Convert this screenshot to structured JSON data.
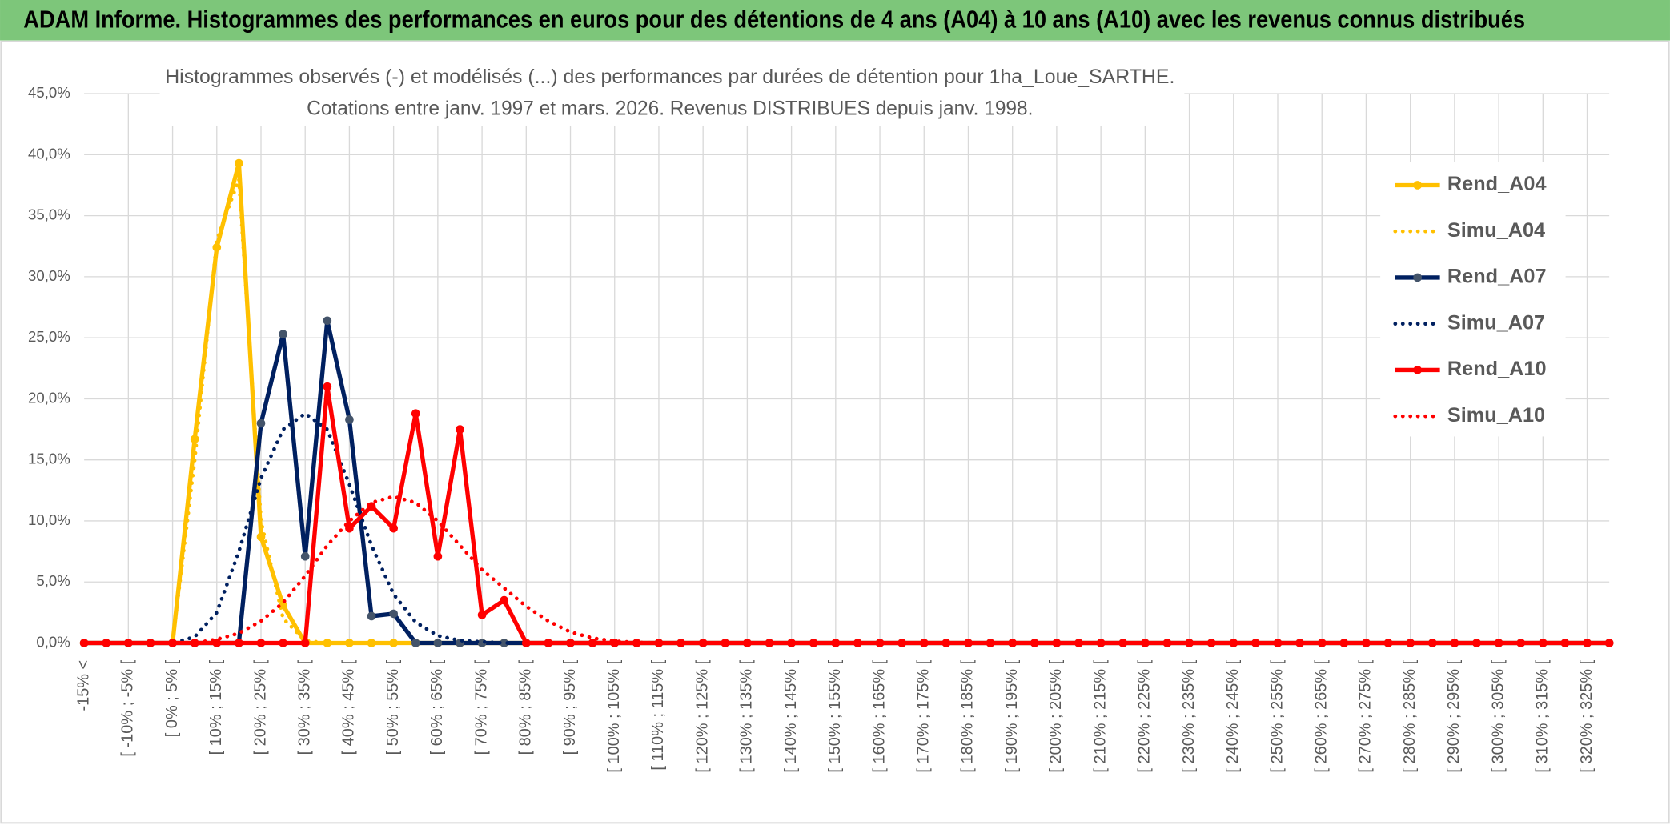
{
  "header": {
    "title": "ADAM Informe. Histogrammes des performances en euros pour des détentions de 4 ans (A04) à 10 ans (A10) avec les revenus connus distribués"
  },
  "chart_data": {
    "type": "line",
    "title": "Histogrammes observés (-) et modélisés (...) des performances par durées de détention pour 1ha_Loue_SARTHE.",
    "subtitle": "Cotations entre janv. 1997 et mars. 2026. Revenus DISTRIBUES depuis janv. 1998.",
    "categories": [
      "-15% <",
      null,
      "[ -10% ; -5% [",
      null,
      "[ 0% ; 5% [",
      null,
      "[ 10% ; 15% [",
      null,
      "[ 20% ; 25% [",
      null,
      "[ 30% ; 35% [",
      null,
      "[ 40% ; 45% [",
      null,
      "[ 50% ; 55% [",
      null,
      "[ 60% ; 65% [",
      null,
      "[ 70% ; 75% [",
      null,
      "[ 80% ; 85% [",
      null,
      "[ 90% ; 95% [",
      null,
      "[ 100% ; 105% [",
      null,
      "[ 110% ; 115% [",
      null,
      "[ 120% ; 125% [",
      null,
      "[ 130% ; 135% [",
      null,
      "[ 140% ; 145% [",
      null,
      "[ 150% ; 155% [",
      null,
      "[ 160% ; 165% [",
      null,
      "[ 170% ; 175% [",
      null,
      "[ 180% ; 185% [",
      null,
      "[ 190% ; 195% [",
      null,
      "[ 200% ; 205% [",
      null,
      "[ 210% ; 215% [",
      null,
      "[ 220% ; 225% [",
      null,
      "[ 230% ; 235% [",
      null,
      "[ 240% ; 245% [",
      null,
      "[ 250% ; 255% [",
      null,
      "[ 260% ; 265% [",
      null,
      "[ 270% ; 275% [",
      null,
      "[ 280% ; 285% [",
      null,
      "[ 290% ; 295% [",
      null,
      "[ 300% ; 305% [",
      null,
      "[ 310% ; 315% [",
      null,
      "[ 320% ; 325% [",
      null
    ],
    "series": [
      {
        "name": "Rend_A04",
        "color": "#ffc000",
        "style": "solid",
        "values": [
          0,
          0,
          0,
          0,
          0,
          16.7,
          32.4,
          39.3,
          8.7,
          3.1,
          0,
          0,
          0,
          0,
          0,
          0,
          0,
          0,
          0,
          0,
          0,
          0,
          0,
          0,
          0,
          0,
          0,
          0,
          0,
          0,
          0,
          0,
          0,
          0,
          0,
          0,
          0,
          0,
          0,
          0,
          0,
          0,
          0,
          0,
          0,
          0,
          0,
          0,
          0,
          0,
          0,
          0,
          0,
          0,
          0,
          0,
          0,
          0,
          0,
          0,
          0,
          0,
          0,
          0,
          0,
          0,
          0,
          0,
          0,
          0
        ]
      },
      {
        "name": "Simu_A04",
        "color": "#ffc000",
        "style": "dotted",
        "values": [
          0,
          0,
          0,
          0,
          0,
          15,
          33,
          38,
          10,
          2,
          0.2,
          0,
          0,
          0,
          0,
          0,
          0,
          0,
          0,
          0,
          0,
          0,
          0,
          0,
          0,
          0,
          0,
          0,
          0,
          0,
          0,
          0,
          0,
          0,
          0,
          0,
          0,
          0,
          0,
          0,
          0,
          0,
          0,
          0,
          0,
          0,
          0,
          0,
          0,
          0,
          0,
          0,
          0,
          0,
          0,
          0,
          0,
          0,
          0,
          0,
          0,
          0,
          0,
          0,
          0,
          0,
          0,
          0,
          0,
          0
        ]
      },
      {
        "name": "Rend_A07",
        "color": "#002060",
        "marker": "#44546a",
        "style": "solid",
        "values": [
          0,
          0,
          0,
          0,
          0,
          0,
          0,
          0,
          18,
          25.3,
          7.1,
          26.4,
          18.3,
          2.2,
          2.4,
          0,
          0,
          0,
          0,
          0,
          0,
          0,
          0,
          0,
          0,
          0,
          0,
          0,
          0,
          0,
          0,
          0,
          0,
          0,
          0,
          0,
          0,
          0,
          0,
          0,
          0,
          0,
          0,
          0,
          0,
          0,
          0,
          0,
          0,
          0,
          0,
          0,
          0,
          0,
          0,
          0,
          0,
          0,
          0,
          0,
          0,
          0,
          0,
          0,
          0,
          0,
          0,
          0,
          0,
          0
        ]
      },
      {
        "name": "Simu_A07",
        "color": "#002060",
        "style": "dotted",
        "values": [
          0,
          0,
          0,
          0,
          0,
          0.5,
          2.5,
          7.5,
          13.5,
          17.5,
          18.8,
          17.5,
          13,
          8,
          4,
          1.7,
          0.6,
          0.2,
          0.1,
          0,
          0,
          0,
          0,
          0,
          0,
          0,
          0,
          0,
          0,
          0,
          0,
          0,
          0,
          0,
          0,
          0,
          0,
          0,
          0,
          0,
          0,
          0,
          0,
          0,
          0,
          0,
          0,
          0,
          0,
          0,
          0,
          0,
          0,
          0,
          0,
          0,
          0,
          0,
          0,
          0,
          0,
          0,
          0,
          0,
          0,
          0,
          0,
          0,
          0,
          0
        ]
      },
      {
        "name": "Rend_A10",
        "color": "#ff0000",
        "style": "solid",
        "values": [
          0,
          0,
          0,
          0,
          0,
          0,
          0,
          0,
          0,
          0,
          0,
          21,
          9.4,
          11.2,
          9.4,
          18.8,
          7.1,
          17.5,
          2.3,
          3.5,
          0,
          0,
          0,
          0,
          0,
          0,
          0,
          0,
          0,
          0,
          0,
          0,
          0,
          0,
          0,
          0,
          0,
          0,
          0,
          0,
          0,
          0,
          0,
          0,
          0,
          0,
          0,
          0,
          0,
          0,
          0,
          0,
          0,
          0,
          0,
          0,
          0,
          0,
          0,
          0,
          0,
          0,
          0,
          0,
          0,
          0,
          0,
          0,
          0,
          0
        ]
      },
      {
        "name": "Simu_A10",
        "color": "#ff0000",
        "style": "dotted",
        "values": [
          0,
          0,
          0,
          0,
          0,
          0,
          0.3,
          0.8,
          1.8,
          3.3,
          5.5,
          8,
          10,
          11.5,
          12,
          11.5,
          10,
          8,
          6,
          4.5,
          3,
          1.8,
          0.9,
          0.4,
          0.15,
          0.05,
          0,
          0,
          0,
          0,
          0,
          0,
          0,
          0,
          0,
          0,
          0,
          0,
          0,
          0,
          0,
          0,
          0,
          0,
          0,
          0,
          0,
          0,
          0,
          0,
          0,
          0,
          0,
          0,
          0,
          0,
          0,
          0,
          0,
          0,
          0,
          0,
          0,
          0,
          0,
          0,
          0,
          0,
          0,
          0
        ]
      }
    ],
    "ylim": [
      0,
      45
    ],
    "yticks": [
      {
        "value": 0,
        "label": "0,0%"
      },
      {
        "value": 5,
        "label": "5,0%"
      },
      {
        "value": 10,
        "label": "10,0%"
      },
      {
        "value": 15,
        "label": "15,0%"
      },
      {
        "value": 20,
        "label": "20,0%"
      },
      {
        "value": 25,
        "label": "25,0%"
      },
      {
        "value": 30,
        "label": "30,0%"
      },
      {
        "value": 35,
        "label": "35,0%"
      },
      {
        "value": 40,
        "label": "40,0%"
      },
      {
        "value": 45,
        "label": "45,0%"
      }
    ],
    "grid": true,
    "legend": "right"
  }
}
